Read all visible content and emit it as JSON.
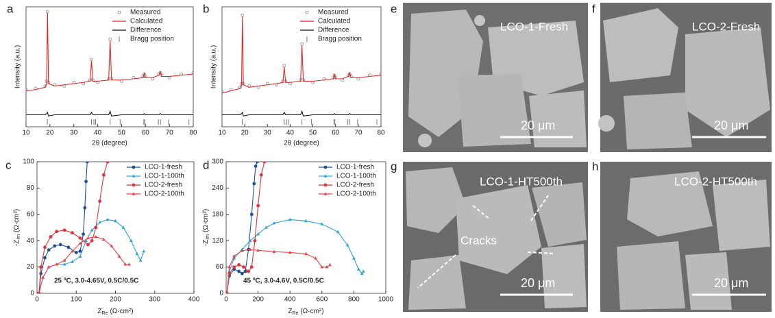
{
  "chart_data": [
    {
      "type": "line",
      "panel": "a",
      "xlabel": "2θ (degree)",
      "ylabel": "Intensity (a.u.)",
      "legend": "upper right",
      "xlim": [
        10,
        80
      ],
      "xticks": [
        10,
        20,
        30,
        40,
        50,
        60,
        70,
        80
      ],
      "ylim": [
        0,
        100
      ],
      "x": [
        10,
        14,
        18,
        18.6,
        19,
        19.4,
        22,
        26,
        30,
        34,
        36.8,
        37.4,
        38,
        40,
        44.6,
        45.2,
        45.8,
        50,
        55,
        59,
        59.5,
        60,
        63,
        65.6,
        66.2,
        66.8,
        70,
        75,
        80
      ],
      "series": [
        {
          "name": "Measured",
          "color": "#8a8a8a",
          "marker": "circle",
          "line": false,
          "values": [
            31,
            32,
            34,
            38,
            96,
            37,
            35,
            34,
            37,
            36,
            39,
            56,
            39,
            37,
            40,
            73,
            40,
            38,
            41,
            42,
            44,
            42,
            40,
            44,
            45,
            43,
            41,
            44,
            45
          ]
        },
        {
          "name": "Calculated",
          "color": "#e02424",
          "marker": "none",
          "line": true,
          "values": [
            30,
            31,
            33,
            36,
            95,
            36,
            34,
            35,
            36,
            37,
            38,
            55,
            38,
            38,
            39,
            72,
            39,
            39,
            40,
            41,
            45,
            41,
            41,
            43,
            46,
            42,
            42,
            43,
            44
          ]
        },
        {
          "name": "Difference",
          "color": "#111111",
          "marker": "none",
          "line": true,
          "values": [
            10,
            10,
            10,
            11,
            12,
            9,
            10,
            10,
            10,
            10,
            10,
            12,
            10,
            10,
            10,
            13,
            9,
            10,
            10,
            10,
            11,
            10,
            10,
            10,
            11,
            10,
            10,
            10,
            10
          ]
        },
        {
          "name": "Bragg position",
          "color": "#777777",
          "marker": "bar",
          "line": false,
          "x": [
            18.9,
            37.4,
            38.4,
            39.1,
            45.2,
            49.4,
            59.3,
            59.7,
            65.4,
            66.3,
            69.7,
            78.2
          ],
          "values": [
            4,
            4,
            4,
            4,
            4,
            4,
            4,
            4,
            4,
            4,
            4,
            4
          ]
        }
      ]
    },
    {
      "type": "line",
      "panel": "b",
      "xlabel": "2θ (degree)",
      "ylabel": "Intensity (a.u.)",
      "legend": "upper right",
      "xlim": [
        10,
        80
      ],
      "xticks": [
        10,
        20,
        30,
        40,
        50,
        60,
        70,
        80
      ],
      "ylim": [
        0,
        100
      ],
      "x": [
        10,
        14,
        18,
        18.6,
        19,
        19.4,
        22,
        26,
        30,
        34,
        36.8,
        37.4,
        38,
        40,
        44.6,
        45.2,
        45.8,
        50,
        55,
        59,
        59.5,
        60,
        63,
        65.6,
        66.2,
        66.8,
        70,
        75,
        80
      ],
      "series": [
        {
          "name": "Measured",
          "color": "#8a8a8a",
          "marker": "circle",
          "line": false,
          "values": [
            29,
            31,
            33,
            36,
            93,
            36,
            34,
            33,
            36,
            35,
            38,
            51,
            38,
            36,
            39,
            69,
            39,
            37,
            40,
            41,
            43,
            41,
            39,
            43,
            44,
            42,
            40,
            43,
            44
          ]
        },
        {
          "name": "Calculated",
          "color": "#e02424",
          "marker": "none",
          "line": true,
          "values": [
            28,
            30,
            32,
            35,
            92,
            35,
            33,
            34,
            35,
            36,
            37,
            50,
            37,
            37,
            38,
            68,
            38,
            38,
            39,
            40,
            44,
            40,
            40,
            42,
            45,
            41,
            41,
            42,
            43
          ]
        },
        {
          "name": "Difference",
          "color": "#111111",
          "marker": "none",
          "line": true,
          "values": [
            10,
            10,
            10,
            11,
            12,
            9,
            10,
            10,
            10,
            10,
            10,
            12,
            10,
            10,
            10,
            13,
            9,
            10,
            10,
            10,
            11,
            10,
            10,
            10,
            11,
            10,
            10,
            10,
            10
          ]
        },
        {
          "name": "Bragg position",
          "color": "#777777",
          "marker": "bar",
          "line": false,
          "x": [
            18.9,
            37.4,
            38.4,
            39.1,
            45.2,
            49.4,
            59.3,
            59.7,
            65.4,
            66.3,
            69.7,
            78.2
          ],
          "values": [
            4,
            4,
            4,
            4,
            4,
            4,
            4,
            4,
            4,
            4,
            4,
            4
          ]
        }
      ]
    },
    {
      "type": "line",
      "panel": "c",
      "legend": "upper right",
      "xlabel": {
        "main": "Z",
        "sub": "Re",
        "unit": "(Ω·cm²)"
      },
      "ylabel": {
        "main": "-Z",
        "sub": "Im",
        "unit": "(Ω·cm²)"
      },
      "annotation": "25 ºC, 3.0-4.65V, 0.5C/0.5C",
      "xlim": [
        0,
        400
      ],
      "xticks": [
        0,
        100,
        200,
        300,
        400
      ],
      "ylim": [
        0,
        100
      ],
      "yticks": [
        0,
        20,
        40,
        60,
        80,
        100
      ],
      "series": [
        {
          "name": "LCO-1-fresh",
          "color": "#1f4e9e",
          "marker": "circle",
          "line": true,
          "x": [
            5,
            10,
            20,
            30,
            45,
            60,
            80,
            100,
            110,
            118,
            122,
            125,
            128
          ],
          "values": [
            0,
            15,
            27,
            33,
            36,
            37,
            35,
            31,
            32,
            45,
            65,
            85,
            100
          ]
        },
        {
          "name": "LCO-1-100th",
          "color": "#29a3d6",
          "marker": "triangle",
          "line": true,
          "x": [
            5,
            15,
            30,
            50,
            70,
            90,
            110,
            125,
            140,
            160,
            180,
            200,
            220,
            240,
            255,
            264,
            272
          ],
          "values": [
            0,
            12,
            20,
            22,
            22,
            24,
            28,
            40,
            48,
            54,
            56,
            55,
            50,
            40,
            30,
            25,
            32
          ]
        },
        {
          "name": "LCO-2-fresh",
          "color": "#e0303a",
          "marker": "circle",
          "line": true,
          "x": [
            5,
            10,
            20,
            35,
            50,
            70,
            90,
            110,
            130,
            140,
            150,
            160,
            170,
            180
          ],
          "values": [
            0,
            20,
            35,
            43,
            47,
            48,
            46,
            42,
            37,
            40,
            50,
            70,
            90,
            100
          ]
        },
        {
          "name": "LCO-2-100th",
          "color": "#e8434a",
          "marker": "triangle",
          "line": true,
          "x": [
            5,
            15,
            30,
            50,
            70,
            90,
            110,
            130,
            150,
            170,
            190,
            210,
            225,
            235
          ],
          "values": [
            0,
            12,
            20,
            22,
            25,
            32,
            38,
            42,
            43,
            41,
            36,
            28,
            22,
            22
          ]
        }
      ]
    },
    {
      "type": "line",
      "panel": "d",
      "legend": "upper right",
      "xlabel": {
        "main": "Z",
        "sub": "Re",
        "unit": "(Ω·cm²)"
      },
      "ylabel": {
        "main": "-Z",
        "sub": "Im",
        "unit": "(Ω·cm²)"
      },
      "annotation": "45 ºC, 3.0-4.6V, 0.5C/0.5C",
      "xlim": [
        0,
        1000
      ],
      "xticks": [
        0,
        200,
        400,
        600,
        800,
        1000
      ],
      "ylim": [
        0,
        300
      ],
      "yticks": [
        0,
        60,
        120,
        180,
        240,
        300
      ],
      "series": [
        {
          "name": "LCO-1-fresh",
          "color": "#1f4e9e",
          "marker": "circle",
          "line": true,
          "x": [
            5,
            20,
            50,
            80,
            100,
            120,
            140,
            160,
            175,
            185,
            195
          ],
          "values": [
            0,
            40,
            55,
            50,
            45,
            50,
            100,
            180,
            250,
            290,
            300
          ]
        },
        {
          "name": "LCO-1-100th",
          "color": "#29a3d6",
          "marker": "triangle",
          "line": true,
          "x": [
            5,
            20,
            50,
            100,
            150,
            200,
            250,
            300,
            400,
            500,
            600,
            700,
            760,
            800,
            830,
            850,
            860
          ],
          "values": [
            0,
            50,
            80,
            100,
            120,
            135,
            150,
            160,
            168,
            165,
            158,
            140,
            110,
            80,
            55,
            45,
            50
          ]
        },
        {
          "name": "LCO-2-fresh",
          "color": "#e0303a",
          "marker": "circle",
          "line": true,
          "x": [
            5,
            20,
            50,
            80,
            110,
            140,
            160,
            180,
            200,
            220,
            240
          ],
          "values": [
            0,
            45,
            60,
            65,
            60,
            50,
            60,
            120,
            200,
            270,
            300
          ]
        },
        {
          "name": "LCO-2-100th",
          "color": "#e8434a",
          "marker": "triangle",
          "line": true,
          "x": [
            5,
            20,
            50,
            100,
            150,
            200,
            300,
            400,
            500,
            560,
            600,
            630,
            650
          ],
          "values": [
            0,
            60,
            85,
            97,
            100,
            98,
            95,
            93,
            90,
            80,
            60,
            60,
            65
          ]
        }
      ]
    }
  ],
  "micrographs": [
    {
      "panel": "e",
      "label": "LCO-1-Fresh",
      "scale": "20 μm"
    },
    {
      "panel": "f",
      "label": "LCO-2-Fresh",
      "scale": "20 μm"
    },
    {
      "panel": "g",
      "label": "LCO-1-HT500th",
      "scale": "20 μm",
      "annotation": "Cracks"
    },
    {
      "panel": "h",
      "label": "LCO-2-HT500th",
      "scale": "20 μm"
    }
  ]
}
